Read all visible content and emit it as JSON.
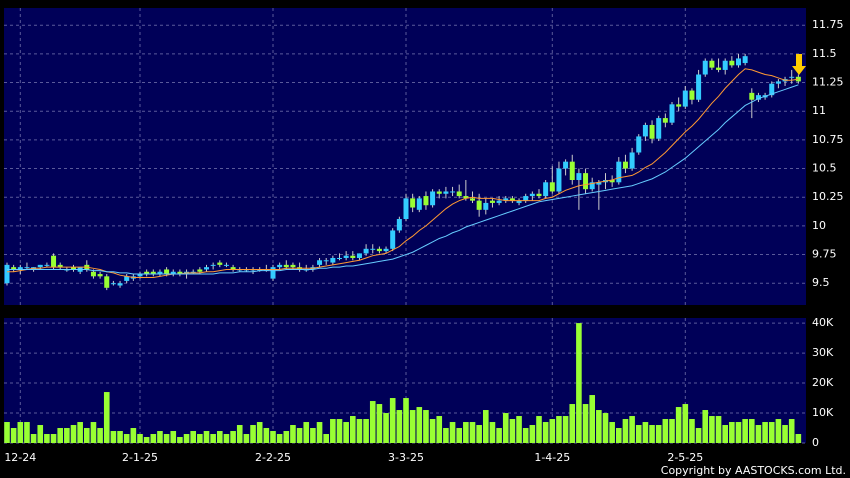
{
  "chart_data": [
    {
      "type": "candlestick",
      "ylim": [
        9.31,
        11.9
      ],
      "yticks": [
        9.5,
        9.75,
        10,
        10.25,
        10.5,
        10.75,
        11,
        11.25,
        11.5,
        11.75
      ],
      "grid": true,
      "up_color": "#33ccff",
      "down_color": "#99ff33",
      "open": [
        9.5,
        9.64,
        9.62,
        9.64,
        9.62,
        9.64,
        9.66,
        9.74,
        9.66,
        9.62,
        9.64,
        9.6,
        9.66,
        9.6,
        9.58,
        9.56,
        9.5,
        9.48,
        9.52,
        9.54,
        9.56,
        9.6,
        9.6,
        9.58,
        9.62,
        9.58,
        9.6,
        9.58,
        9.6,
        9.62,
        9.62,
        9.66,
        9.68,
        9.66,
        9.64,
        9.62,
        9.62,
        9.62,
        9.62,
        9.62,
        9.54,
        9.64,
        9.66,
        9.66,
        9.64,
        9.62,
        9.62,
        9.66,
        9.7,
        9.68,
        9.72,
        9.72,
        9.74,
        9.72,
        9.76,
        9.8,
        9.8,
        9.78,
        9.8,
        9.96,
        10.06,
        10.24,
        10.14,
        10.26,
        10.18,
        10.3,
        10.28,
        10.3,
        10.3,
        10.26,
        10.24,
        10.22,
        10.14,
        10.22,
        10.2,
        10.22,
        10.24,
        10.2,
        10.22,
        10.26,
        10.28,
        10.26,
        10.38,
        10.3,
        10.5,
        10.56,
        10.4,
        10.46,
        10.32,
        10.36,
        10.38,
        10.4,
        10.38,
        10.56,
        10.5,
        10.64,
        10.78,
        10.88,
        10.76,
        10.94,
        10.9,
        11.06,
        11.04,
        11.18,
        11.1,
        11.32,
        11.44,
        11.38,
        11.36,
        11.44,
        11.4,
        11.42,
        11.16,
        11.1,
        11.12,
        11.14,
        11.24,
        11.26,
        11.3,
        11.3
      ],
      "high": [
        9.68,
        9.66,
        9.66,
        9.68,
        9.64,
        9.66,
        9.68,
        9.76,
        9.68,
        9.64,
        9.66,
        9.64,
        9.7,
        9.62,
        9.6,
        9.58,
        9.52,
        9.52,
        9.58,
        9.58,
        9.6,
        9.62,
        9.62,
        9.62,
        9.64,
        9.62,
        9.62,
        9.62,
        9.62,
        9.64,
        9.66,
        9.68,
        9.7,
        9.68,
        9.66,
        9.64,
        9.64,
        9.64,
        9.64,
        9.66,
        9.66,
        9.68,
        9.7,
        9.68,
        9.68,
        9.66,
        9.66,
        9.72,
        9.72,
        9.74,
        9.76,
        9.78,
        9.78,
        9.76,
        9.84,
        9.84,
        9.82,
        9.82,
        9.98,
        10.08,
        10.28,
        10.28,
        10.26,
        10.3,
        10.32,
        10.32,
        10.34,
        10.34,
        10.36,
        10.4,
        10.3,
        10.28,
        10.24,
        10.24,
        10.26,
        10.26,
        10.26,
        10.24,
        10.28,
        10.3,
        10.32,
        10.4,
        10.52,
        10.56,
        10.58,
        10.62,
        10.5,
        10.5,
        10.42,
        10.4,
        10.46,
        10.44,
        10.6,
        10.62,
        10.68,
        10.8,
        10.9,
        10.92,
        10.96,
        10.98,
        11.08,
        11.12,
        11.22,
        11.2,
        11.36,
        11.46,
        11.46,
        11.46,
        11.46,
        11.48,
        11.5,
        11.5,
        11.2,
        11.16,
        11.16,
        11.26,
        11.28,
        11.3,
        11.36,
        11.32
      ],
      "low": [
        9.48,
        9.6,
        9.58,
        9.62,
        9.6,
        9.62,
        9.64,
        9.62,
        9.62,
        9.6,
        9.6,
        9.58,
        9.6,
        9.54,
        9.54,
        9.44,
        9.48,
        9.46,
        9.5,
        9.52,
        9.54,
        9.56,
        9.56,
        9.56,
        9.56,
        9.56,
        9.56,
        9.54,
        9.58,
        9.58,
        9.6,
        9.62,
        9.64,
        9.64,
        9.6,
        9.6,
        9.6,
        9.58,
        9.6,
        9.6,
        9.52,
        9.62,
        9.62,
        9.62,
        9.6,
        9.6,
        9.6,
        9.64,
        9.66,
        9.66,
        9.7,
        9.7,
        9.7,
        9.7,
        9.74,
        9.76,
        9.76,
        9.76,
        9.78,
        9.94,
        10.04,
        10.12,
        10.12,
        10.14,
        10.16,
        10.24,
        10.24,
        10.26,
        10.24,
        10.22,
        10.2,
        10.08,
        10.1,
        10.16,
        10.18,
        10.2,
        10.2,
        10.18,
        10.2,
        10.22,
        10.24,
        10.24,
        10.28,
        10.28,
        10.44,
        10.36,
        10.14,
        10.28,
        10.3,
        10.14,
        10.32,
        10.34,
        10.36,
        10.46,
        10.48,
        10.62,
        10.74,
        10.72,
        10.74,
        10.86,
        10.88,
        11.0,
        11.02,
        11.06,
        11.08,
        11.3,
        11.36,
        11.34,
        11.32,
        11.38,
        11.38,
        11.4,
        10.94,
        11.08,
        11.1,
        11.12,
        11.2,
        11.22,
        11.24,
        11.24
      ],
      "close": [
        9.66,
        9.62,
        9.64,
        9.64,
        9.64,
        9.66,
        9.66,
        9.64,
        9.64,
        9.62,
        9.62,
        9.64,
        9.62,
        9.56,
        9.56,
        9.46,
        9.5,
        9.5,
        9.56,
        9.56,
        9.58,
        9.58,
        9.58,
        9.6,
        9.58,
        9.6,
        9.58,
        9.6,
        9.6,
        9.6,
        9.64,
        9.66,
        9.66,
        9.66,
        9.62,
        9.62,
        9.62,
        9.62,
        9.62,
        9.62,
        9.64,
        9.66,
        9.64,
        9.64,
        9.62,
        9.62,
        9.64,
        9.7,
        9.7,
        9.72,
        9.72,
        9.74,
        9.72,
        9.76,
        9.8,
        9.8,
        9.78,
        9.8,
        9.96,
        10.06,
        10.24,
        10.16,
        10.24,
        10.18,
        10.3,
        10.28,
        10.3,
        10.3,
        10.26,
        10.24,
        10.22,
        10.14,
        10.2,
        10.2,
        10.22,
        10.24,
        10.22,
        10.22,
        10.26,
        10.28,
        10.26,
        10.38,
        10.3,
        10.5,
        10.56,
        10.4,
        10.46,
        10.32,
        10.38,
        10.38,
        10.4,
        10.38,
        10.56,
        10.5,
        10.64,
        10.78,
        10.88,
        10.76,
        10.94,
        10.9,
        11.06,
        11.04,
        11.18,
        11.1,
        11.32,
        11.44,
        11.38,
        11.36,
        11.44,
        11.4,
        11.46,
        11.48,
        11.1,
        11.14,
        11.14,
        11.24,
        11.26,
        11.28,
        11.3,
        11.26
      ],
      "series": [
        {
          "color": "#ff9933",
          "values": [
            9.6,
            9.6,
            9.61,
            9.62,
            9.63,
            9.63,
            9.64,
            9.64,
            9.64,
            9.64,
            9.64,
            9.64,
            9.64,
            9.63,
            9.62,
            9.6,
            9.59,
            9.57,
            9.56,
            9.55,
            9.55,
            9.55,
            9.55,
            9.56,
            9.57,
            9.58,
            9.58,
            9.59,
            9.59,
            9.59,
            9.6,
            9.6,
            9.61,
            9.62,
            9.62,
            9.62,
            9.62,
            9.62,
            9.62,
            9.62,
            9.62,
            9.62,
            9.63,
            9.63,
            9.63,
            9.63,
            9.63,
            9.64,
            9.65,
            9.66,
            9.67,
            9.68,
            9.69,
            9.7,
            9.72,
            9.74,
            9.75,
            9.76,
            9.79,
            9.82,
            9.87,
            9.91,
            9.96,
            10.0,
            10.05,
            10.1,
            10.15,
            10.19,
            10.22,
            10.24,
            10.25,
            10.24,
            10.24,
            10.24,
            10.23,
            10.22,
            10.22,
            10.22,
            10.22,
            10.22,
            10.22,
            10.24,
            10.25,
            10.28,
            10.31,
            10.33,
            10.35,
            10.36,
            10.37,
            10.38,
            10.39,
            10.4,
            10.42,
            10.43,
            10.44,
            10.47,
            10.51,
            10.54,
            10.59,
            10.64,
            10.7,
            10.76,
            10.82,
            10.87,
            10.93,
            11.0,
            11.07,
            11.13,
            11.2,
            11.26,
            11.32,
            11.37,
            11.36,
            11.34,
            11.32,
            11.31,
            11.29,
            11.27,
            11.27,
            11.28
          ]
        },
        {
          "color": "#66ccff",
          "values": [
            9.62,
            9.62,
            9.62,
            9.62,
            9.62,
            9.62,
            9.62,
            9.62,
            9.62,
            9.62,
            9.62,
            9.62,
            9.62,
            9.61,
            9.61,
            9.6,
            9.6,
            9.59,
            9.59,
            9.58,
            9.58,
            9.58,
            9.58,
            9.58,
            9.58,
            9.58,
            9.58,
            9.58,
            9.58,
            9.58,
            9.58,
            9.58,
            9.59,
            9.59,
            9.59,
            9.6,
            9.6,
            9.6,
            9.61,
            9.61,
            9.61,
            9.61,
            9.62,
            9.62,
            9.62,
            9.62,
            9.62,
            9.63,
            9.63,
            9.64,
            9.64,
            9.65,
            9.65,
            9.66,
            9.67,
            9.68,
            9.69,
            9.7,
            9.71,
            9.73,
            9.75,
            9.77,
            9.8,
            9.83,
            9.86,
            9.89,
            9.91,
            9.94,
            9.96,
            9.99,
            10.01,
            10.03,
            10.05,
            10.07,
            10.09,
            10.11,
            10.13,
            10.15,
            10.17,
            10.19,
            10.21,
            10.22,
            10.23,
            10.24,
            10.25,
            10.26,
            10.27,
            10.28,
            10.29,
            10.3,
            10.31,
            10.32,
            10.33,
            10.34,
            10.35,
            10.37,
            10.39,
            10.41,
            10.44,
            10.47,
            10.51,
            10.55,
            10.59,
            10.64,
            10.69,
            10.74,
            10.79,
            10.84,
            10.9,
            10.95,
            11.0,
            11.05,
            11.08,
            11.11,
            11.13,
            11.15,
            11.17,
            11.19,
            11.21,
            11.23
          ]
        }
      ]
    },
    {
      "type": "bar",
      "ylim": [
        0,
        41700
      ],
      "yticks": [
        0,
        {
          "value": 10000,
          "label": "10K"
        },
        {
          "value": 20000,
          "label": "20K"
        },
        {
          "value": 30000,
          "label": "30K"
        },
        {
          "value": 40000,
          "label": "40K"
        }
      ],
      "grid": true,
      "color": "#99ff33",
      "categories": [
        null,
        null,
        "12-24",
        null,
        null,
        null,
        null,
        null,
        null,
        null,
        null,
        null,
        null,
        null,
        null,
        null,
        null,
        null,
        null,
        null,
        "2-1-25",
        null,
        null,
        null,
        null,
        null,
        null,
        null,
        null,
        null,
        null,
        null,
        null,
        null,
        null,
        null,
        null,
        null,
        null,
        null,
        "2-2-25",
        null,
        null,
        null,
        null,
        null,
        null,
        null,
        null,
        null,
        null,
        null,
        null,
        null,
        null,
        null,
        null,
        null,
        null,
        null,
        "3-3-25",
        null,
        null,
        null,
        null,
        null,
        null,
        null,
        null,
        null,
        null,
        null,
        null,
        null,
        null,
        null,
        null,
        null,
        null,
        null,
        null,
        null,
        "1-4-25",
        null,
        null,
        null,
        null,
        null,
        null,
        null,
        null,
        null,
        null,
        null,
        null,
        null,
        null,
        null,
        null,
        null,
        null,
        null,
        "2-5-25",
        null,
        null,
        null,
        null,
        null,
        null,
        null,
        null,
        null,
        null,
        null,
        null,
        null,
        null,
        null,
        null,
        null
      ],
      "values": [
        7000,
        5000,
        7000,
        7000,
        3000,
        6000,
        3000,
        3000,
        5000,
        5000,
        6000,
        7000,
        5000,
        7000,
        5000,
        17000,
        4000,
        4000,
        3000,
        5000,
        3000,
        2000,
        3000,
        4000,
        3000,
        4000,
        2000,
        3000,
        4000,
        3000,
        4000,
        3000,
        4000,
        3000,
        4000,
        6000,
        3000,
        6000,
        7000,
        5000,
        4000,
        3000,
        4000,
        6000,
        5000,
        7000,
        5000,
        7000,
        3000,
        8000,
        8000,
        7000,
        9000,
        8000,
        8000,
        14000,
        13000,
        10000,
        15000,
        11000,
        15000,
        11000,
        12000,
        11000,
        8000,
        9000,
        5000,
        7000,
        5000,
        7000,
        7000,
        6000,
        11000,
        7000,
        5000,
        10000,
        8000,
        9000,
        5000,
        6000,
        9000,
        7000,
        8000,
        9000,
        9000,
        13000,
        40000,
        13000,
        16000,
        11000,
        10000,
        7000,
        5000,
        8000,
        9000,
        6000,
        7000,
        6000,
        6000,
        8000,
        8000,
        12000,
        13000,
        8000,
        5000,
        11000,
        9000,
        9000,
        6000,
        7000,
        7000,
        8000,
        8000,
        6000,
        7000,
        7000,
        8000,
        6000,
        8000,
        3000
      ]
    },
    "Copyright by AASTOCKS.com Ltd."
  ]
}
